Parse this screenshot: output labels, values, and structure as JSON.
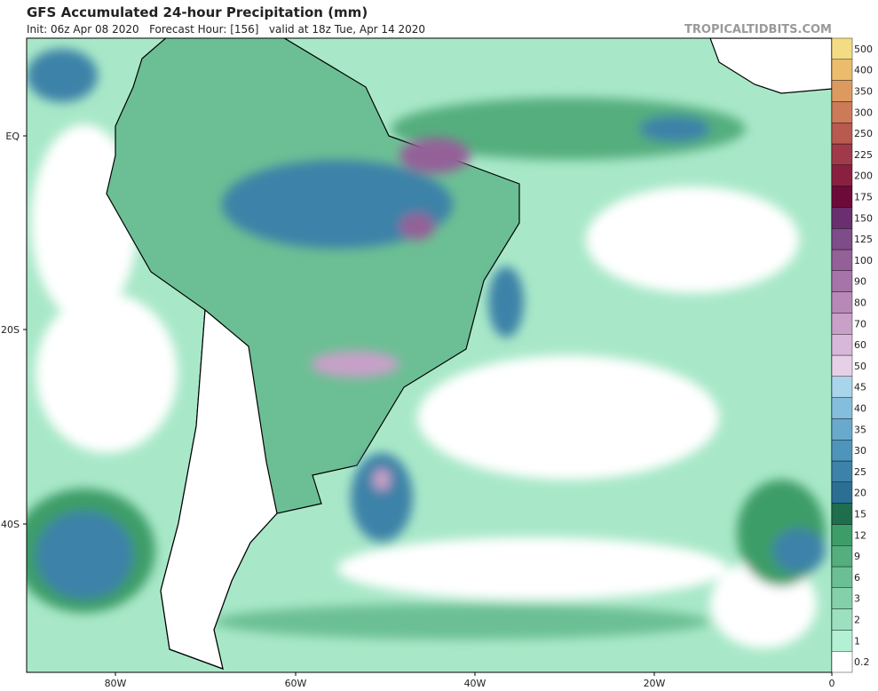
{
  "header": {
    "title": "GFS Accumulated 24-hour Precipitation (mm)",
    "subtitle": "Init: 06z Apr 08 2020   Forecast Hour: [156]   valid at 18z Tue, Apr 14 2020",
    "watermark": "TROPICALTIDBITS.COM"
  },
  "map": {
    "lon_labels": [
      "80W",
      "60W",
      "40W",
      "20W",
      "0"
    ],
    "lat_labels": [
      "EQ",
      "20S",
      "40S"
    ]
  },
  "colorbar": {
    "levels": [
      {
        "label": "0.2",
        "color": "#ffffff"
      },
      {
        "label": "1",
        "color": "#b4f0d4"
      },
      {
        "label": "2",
        "color": "#9ce0bf"
      },
      {
        "label": "3",
        "color": "#84d0aa"
      },
      {
        "label": "6",
        "color": "#6cbf94"
      },
      {
        "label": "9",
        "color": "#54ae7e"
      },
      {
        "label": "12",
        "color": "#3c9d68"
      },
      {
        "label": "15",
        "color": "#1e6e4e"
      },
      {
        "label": "20",
        "color": "#2c6f94"
      },
      {
        "label": "25",
        "color": "#3d82a8"
      },
      {
        "label": "30",
        "color": "#4f95bb"
      },
      {
        "label": "35",
        "color": "#68a9cc"
      },
      {
        "label": "40",
        "color": "#84bedc"
      },
      {
        "label": "45",
        "color": "#a8d4ec"
      },
      {
        "label": "50",
        "color": "#e6d0e8"
      },
      {
        "label": "60",
        "color": "#d8b8da"
      },
      {
        "label": "70",
        "color": "#c8a0c8"
      },
      {
        "label": "80",
        "color": "#b888b8"
      },
      {
        "label": "90",
        "color": "#a674a8"
      },
      {
        "label": "100",
        "color": "#946098"
      },
      {
        "label": "125",
        "color": "#7e4c88"
      },
      {
        "label": "150",
        "color": "#6a2f6e"
      },
      {
        "label": "175",
        "color": "#6e0a3a"
      },
      {
        "label": "200",
        "color": "#8a2040"
      },
      {
        "label": "225",
        "color": "#a03a4a"
      },
      {
        "label": "250",
        "color": "#b85a50"
      },
      {
        "label": "300",
        "color": "#cc7a58"
      },
      {
        "label": "350",
        "color": "#dc9a60"
      },
      {
        "label": "400",
        "color": "#eabc6c"
      },
      {
        "label": "500",
        "color": "#f4dc84"
      }
    ]
  }
}
